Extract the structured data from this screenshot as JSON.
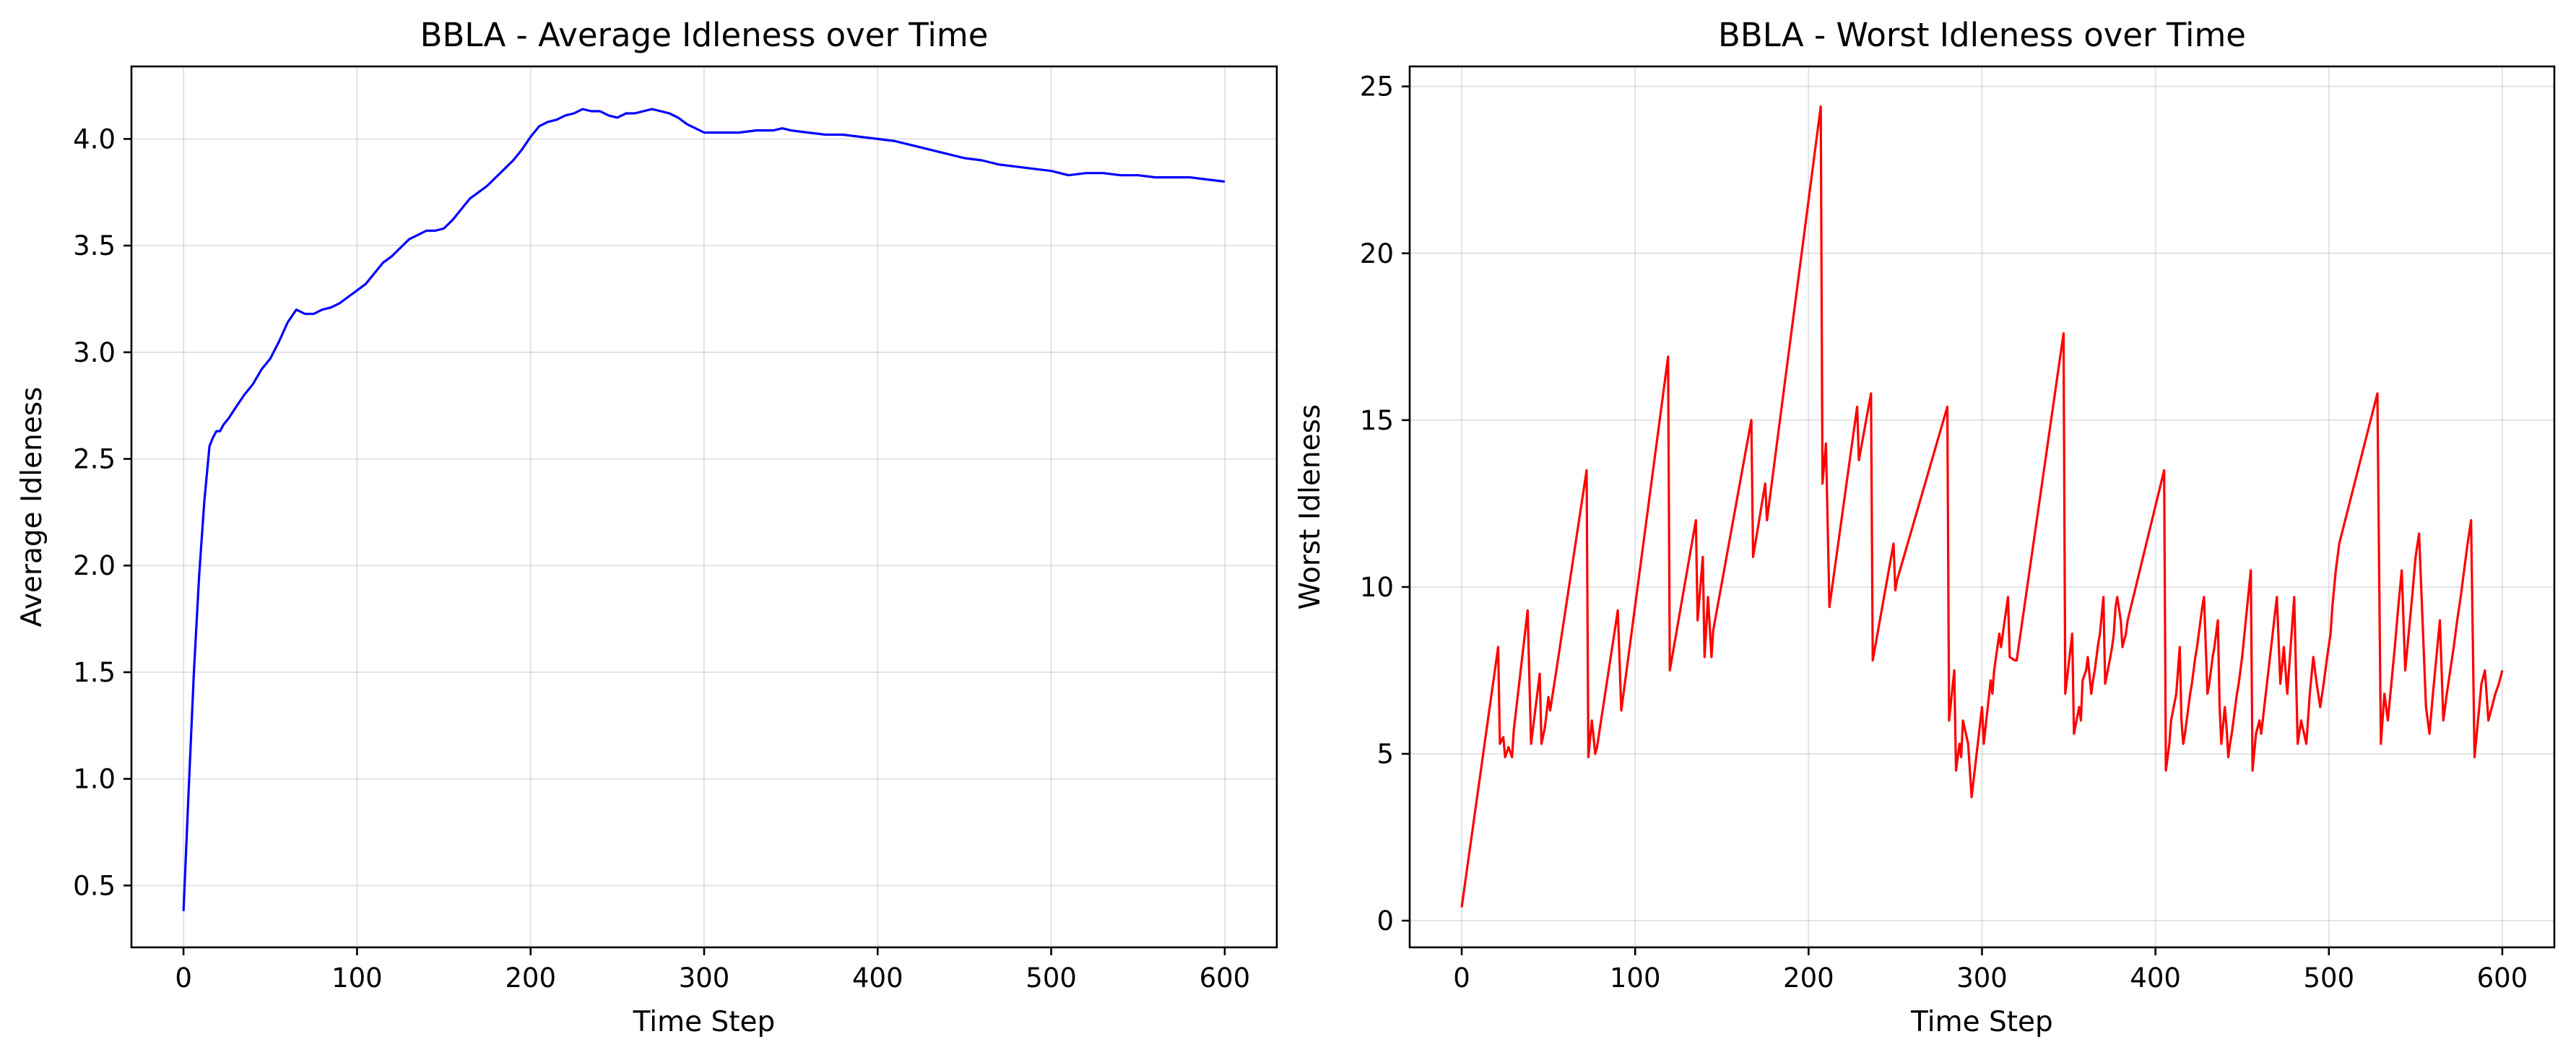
{
  "chart_data": [
    {
      "type": "line",
      "title": "BBLA - Average Idleness over Time",
      "xlabel": "Time Step",
      "ylabel": "Average Idleness",
      "xlim": [
        -30,
        630
      ],
      "ylim": [
        0.21,
        4.34
      ],
      "xticks": [
        0,
        100,
        200,
        300,
        400,
        500,
        600
      ],
      "yticks": [
        0.5,
        1.0,
        1.5,
        2.0,
        2.5,
        3.0,
        3.5,
        4.0
      ],
      "xtick_labels": [
        "0",
        "100",
        "200",
        "300",
        "400",
        "500",
        "600"
      ],
      "ytick_labels": [
        "0.5",
        "1.0",
        "1.5",
        "2.0",
        "2.5",
        "3.0",
        "3.5",
        "4.0"
      ],
      "grid": true,
      "series": [
        {
          "color": "#0000ff",
          "x": [
            0,
            3,
            6,
            9,
            12,
            15,
            17,
            19,
            21,
            23,
            26,
            30,
            35,
            40,
            45,
            50,
            55,
            60,
            65,
            70,
            72,
            75,
            80,
            85,
            90,
            95,
            100,
            105,
            110,
            115,
            120,
            125,
            130,
            135,
            140,
            145,
            150,
            155,
            160,
            165,
            170,
            175,
            180,
            185,
            190,
            195,
            200,
            205,
            210,
            215,
            220,
            225,
            230,
            235,
            240,
            245,
            250,
            255,
            260,
            265,
            270,
            275,
            280,
            285,
            290,
            295,
            300,
            310,
            320,
            330,
            340,
            345,
            350,
            360,
            370,
            380,
            390,
            400,
            410,
            420,
            430,
            440,
            450,
            460,
            470,
            480,
            490,
            500,
            510,
            520,
            530,
            540,
            550,
            560,
            570,
            580,
            590,
            600
          ],
          "y": [
            0.38,
            0.95,
            1.5,
            1.95,
            2.3,
            2.56,
            2.6,
            2.63,
            2.63,
            2.66,
            2.69,
            2.74,
            2.8,
            2.85,
            2.92,
            2.97,
            3.05,
            3.14,
            3.2,
            3.18,
            3.18,
            3.18,
            3.2,
            3.21,
            3.23,
            3.26,
            3.29,
            3.32,
            3.37,
            3.42,
            3.45,
            3.49,
            3.53,
            3.55,
            3.57,
            3.57,
            3.58,
            3.62,
            3.67,
            3.72,
            3.75,
            3.78,
            3.82,
            3.86,
            3.9,
            3.95,
            4.01,
            4.06,
            4.08,
            4.09,
            4.11,
            4.12,
            4.14,
            4.13,
            4.13,
            4.11,
            4.1,
            4.12,
            4.12,
            4.13,
            4.14,
            4.13,
            4.12,
            4.1,
            4.07,
            4.05,
            4.03,
            4.03,
            4.03,
            4.04,
            4.04,
            4.05,
            4.04,
            4.03,
            4.02,
            4.02,
            4.01,
            4.0,
            3.99,
            3.97,
            3.95,
            3.93,
            3.91,
            3.9,
            3.88,
            3.87,
            3.86,
            3.85,
            3.83,
            3.84,
            3.84,
            3.83,
            3.83,
            3.82,
            3.82,
            3.82,
            3.81,
            3.8
          ]
        }
      ]
    },
    {
      "type": "line",
      "title": "BBLA - Worst Idleness over Time",
      "xlabel": "Time Step",
      "ylabel": "Worst Idleness",
      "xlim": [
        -30,
        630
      ],
      "ylim": [
        -0.8,
        25.6
      ],
      "xticks": [
        0,
        100,
        200,
        300,
        400,
        500,
        600
      ],
      "yticks": [
        0,
        5,
        10,
        15,
        20,
        25
      ],
      "xtick_labels": [
        "0",
        "100",
        "200",
        "300",
        "400",
        "500",
        "600"
      ],
      "ytick_labels": [
        "0",
        "5",
        "10",
        "15",
        "20",
        "25"
      ],
      "grid": true,
      "series": [
        {
          "color": "#ff0000",
          "x": [
            0,
            21,
            22,
            24,
            25,
            27,
            29,
            30,
            38,
            40,
            45,
            46,
            48,
            50,
            51,
            54,
            72,
            73,
            75,
            77,
            78,
            90,
            92,
            119,
            120,
            135,
            136,
            139,
            140,
            142,
            144,
            145,
            167,
            168,
            175,
            176,
            207,
            208,
            210,
            212,
            228,
            229,
            236,
            237,
            249,
            250,
            251,
            280,
            281,
            284,
            285,
            287,
            288,
            289,
            292,
            294,
            300,
            301,
            305,
            306,
            307,
            310,
            311,
            312,
            315,
            316,
            319,
            320,
            347,
            348,
            352,
            353,
            356,
            357,
            358,
            360,
            361,
            363,
            364,
            365,
            366,
            367,
            368,
            370,
            371,
            374,
            375,
            376,
            377,
            378,
            380,
            381,
            383,
            384,
            405,
            406,
            408,
            409,
            412,
            413,
            414,
            415,
            416,
            417,
            418,
            419,
            420,
            421,
            422,
            423,
            424,
            425,
            426,
            427,
            428,
            430,
            431,
            432,
            433,
            434,
            435,
            436,
            437,
            438,
            440,
            441,
            442,
            443,
            444,
            445,
            446,
            447,
            448,
            449,
            450,
            455,
            456,
            458,
            460,
            461,
            470,
            472,
            474,
            476,
            480,
            482,
            484,
            487,
            489,
            491,
            493,
            495,
            497,
            499,
            501,
            502,
            504,
            506,
            528,
            530,
            532,
            534,
            536,
            538,
            540,
            542,
            544,
            546,
            548,
            550,
            552,
            556,
            558,
            560,
            562,
            564,
            566,
            568,
            570,
            572,
            574,
            576,
            578,
            580,
            582,
            584,
            586,
            588,
            590,
            592,
            594,
            596,
            598,
            600
          ],
          "y": [
            0.4,
            8.2,
            5.3,
            5.5,
            4.9,
            5.2,
            4.9,
            5.7,
            9.3,
            5.3,
            7.4,
            5.3,
            5.8,
            6.7,
            6.3,
            7.3,
            13.5,
            4.9,
            6.0,
            5.0,
            5.2,
            9.3,
            6.3,
            16.9,
            7.5,
            12.0,
            9.0,
            10.9,
            7.9,
            9.7,
            7.9,
            8.7,
            15.0,
            10.9,
            13.1,
            12.0,
            24.4,
            13.1,
            14.3,
            9.4,
            15.4,
            13.8,
            15.8,
            7.8,
            11.3,
            9.9,
            10.2,
            15.4,
            6.0,
            7.5,
            4.5,
            5.3,
            4.9,
            6.0,
            5.3,
            3.7,
            6.4,
            5.3,
            7.2,
            6.8,
            7.5,
            8.6,
            8.2,
            8.6,
            9.7,
            7.9,
            7.8,
            7.8,
            17.6,
            6.8,
            8.6,
            5.6,
            6.4,
            6.0,
            7.2,
            7.5,
            7.9,
            6.8,
            7.2,
            7.5,
            7.9,
            8.3,
            8.6,
            9.7,
            7.1,
            7.9,
            8.2,
            8.6,
            9.4,
            9.7,
            9.0,
            8.2,
            8.6,
            9.0,
            13.5,
            4.5,
            5.3,
            6.0,
            6.8,
            7.5,
            8.2,
            6.0,
            5.3,
            5.6,
            6.0,
            6.4,
            6.8,
            7.1,
            7.5,
            7.9,
            8.2,
            8.6,
            9.0,
            9.4,
            9.7,
            6.8,
            7.1,
            7.5,
            7.9,
            8.2,
            8.6,
            9.0,
            6.4,
            5.3,
            6.4,
            5.8,
            4.9,
            5.3,
            5.6,
            6.0,
            6.4,
            6.8,
            7.1,
            7.5,
            7.9,
            10.5,
            4.5,
            5.6,
            6.0,
            5.6,
            9.7,
            7.1,
            8.2,
            6.8,
            9.7,
            5.3,
            6.0,
            5.3,
            6.8,
            7.9,
            7.1,
            6.4,
            7.1,
            7.9,
            8.6,
            9.4,
            10.5,
            11.3,
            15.8,
            5.3,
            6.8,
            6.0,
            7.1,
            8.2,
            9.4,
            10.5,
            7.5,
            8.6,
            9.7,
            10.9,
            11.6,
            6.4,
            5.6,
            6.8,
            7.9,
            9.0,
            6.0,
            6.8,
            7.5,
            8.2,
            9.0,
            9.7,
            10.5,
            11.3,
            12.0,
            4.9,
            6.0,
            7.1,
            7.5,
            6.0,
            6.4,
            6.8,
            7.1,
            7.5
          ]
        }
      ]
    }
  ]
}
